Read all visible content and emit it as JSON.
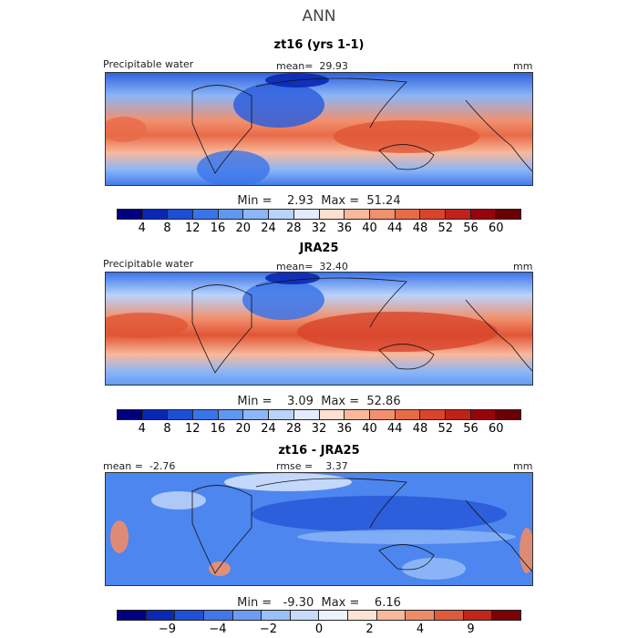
{
  "figure": {
    "title": "ANN"
  },
  "colors": {
    "abs_scale": [
      "#00007e",
      "#0a27b4",
      "#1d4fd4",
      "#3b74e8",
      "#5f97f2",
      "#8cb6f7",
      "#b9d3fb",
      "#e2ecfe",
      "#fde0d0",
      "#f8b99c",
      "#f1906e",
      "#e86b48",
      "#d8452c",
      "#c0221a",
      "#99040c",
      "#6a0005"
    ],
    "diff_scale": [
      "#00007e",
      "#0a2ab4",
      "#2050d6",
      "#4277ea",
      "#6c9df2",
      "#9bbff8",
      "#c7daf9",
      "#eef2fd",
      "#fde3d3",
      "#f7b99c",
      "#ee8c68",
      "#df5b3d",
      "#c22519",
      "#7a0306"
    ]
  },
  "panels": [
    {
      "title": "zt16 (yrs 1-1)",
      "left_label": "Precipitable water",
      "center_label": "mean=  29.93",
      "right_label": "mm",
      "stats": "Min =    2.93  Max =  51.24",
      "ticks": [
        "4",
        "8",
        "12",
        "16",
        "20",
        "24",
        "28",
        "32",
        "36",
        "40",
        "44",
        "48",
        "52",
        "56",
        "60"
      ]
    },
    {
      "title": "JRA25",
      "left_label": "Precipitable water",
      "center_label": "mean=  32.40",
      "right_label": "mm",
      "stats": "Min =    3.09  Max =  52.86",
      "ticks": [
        "4",
        "8",
        "12",
        "16",
        "20",
        "24",
        "28",
        "32",
        "36",
        "40",
        "44",
        "48",
        "52",
        "56",
        "60"
      ]
    },
    {
      "title": "zt16 - JRA25",
      "left_label": "mean =  -2.76",
      "center_label": "rmse =    3.37",
      "right_label": "mm",
      "stats": "Min =   -9.30  Max =    6.16",
      "ticks": [
        "−9",
        "−4",
        "−2",
        "0",
        "2",
        "4",
        "9"
      ]
    }
  ]
}
